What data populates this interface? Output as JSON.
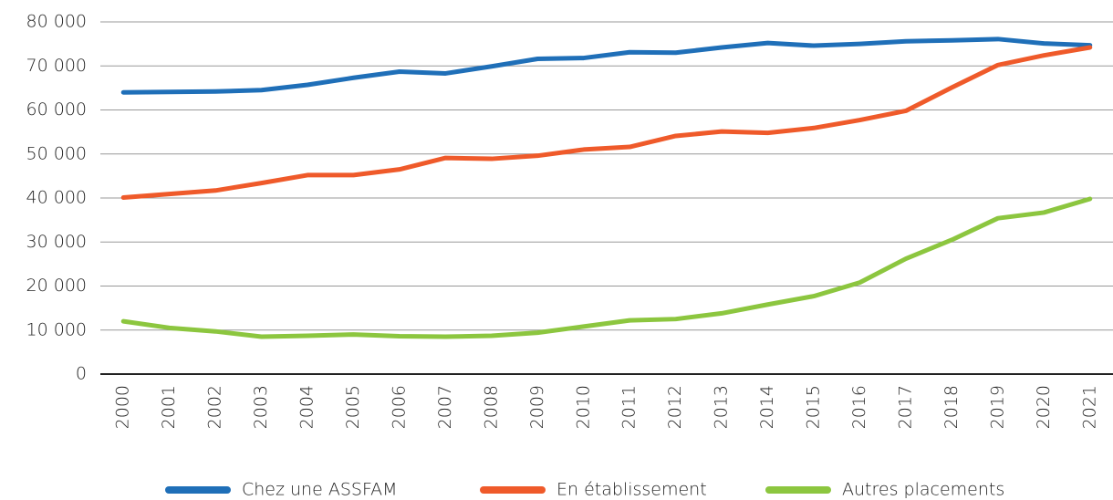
{
  "chart_data": {
    "type": "line",
    "categories": [
      "2000",
      "2001",
      "2002",
      "2003",
      "2004",
      "2005",
      "2006",
      "2007",
      "2008",
      "2009",
      "2010",
      "2011",
      "2012",
      "2013",
      "2014",
      "2015",
      "2016",
      "2017",
      "2018",
      "2019",
      "2020",
      "2021"
    ],
    "series": [
      {
        "name": "Chez une ASSFAM",
        "color": "#1f6fb8",
        "values": [
          64000,
          64100,
          64200,
          64500,
          65700,
          67300,
          68700,
          68300,
          69900,
          71600,
          71800,
          73100,
          73000,
          74200,
          75200,
          74600,
          75000,
          75600,
          75800,
          76100,
          75100,
          74700
        ]
      },
      {
        "name": "En établissement",
        "color": "#ef5a2a",
        "values": [
          40100,
          40900,
          41700,
          43400,
          45200,
          45200,
          46500,
          49100,
          48900,
          49600,
          51000,
          51600,
          54100,
          55100,
          54800,
          55900,
          57700,
          59800,
          65100,
          70200,
          72400,
          74200
        ]
      },
      {
        "name": "Autres placements",
        "color": "#8cc63f",
        "values": [
          12000,
          10500,
          9700,
          8500,
          8700,
          9000,
          8600,
          8500,
          8700,
          9400,
          10800,
          12200,
          12500,
          13800,
          15800,
          17700,
          20800,
          26200,
          30500,
          35400,
          36700,
          39800
        ]
      }
    ],
    "ylim": [
      0,
      80000
    ],
    "yticks": [
      0,
      {
        "value": 10000,
        "label": "10 000"
      },
      {
        "value": 20000,
        "label": "20 000"
      },
      {
        "value": 30000,
        "label": "30 000"
      },
      {
        "value": 40000,
        "label": "40 000"
      },
      {
        "value": 50000,
        "label": "50 000"
      },
      {
        "value": 60000,
        "label": "60 000"
      },
      {
        "value": 70000,
        "label": "70 000"
      },
      {
        "value": 80000,
        "label": "80 000"
      }
    ],
    "grid": true,
    "legend": "bottom"
  }
}
